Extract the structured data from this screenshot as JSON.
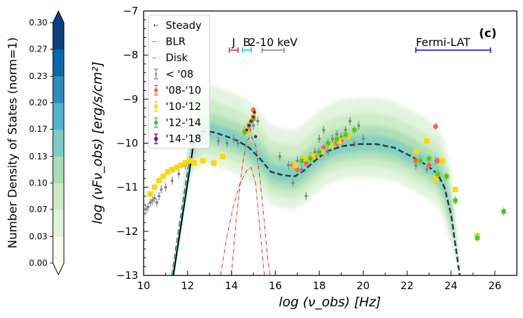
{
  "chart_data": {
    "type": "scatter",
    "panel_label": "(c)",
    "xlabel": "log (ν_obs)  [Hz]",
    "ylabel": "log (νFν_obs)  [erg/s/cm²]",
    "xlim": [
      10,
      27
    ],
    "ylim": [
      -13,
      -7
    ],
    "x_ticks": [
      10,
      12,
      14,
      16,
      18,
      20,
      22,
      24,
      26
    ],
    "y_ticks": [
      -13,
      -12,
      -11,
      -10,
      -9,
      -8,
      -7
    ],
    "colorbar": {
      "label": "Number Density of States (norm=1)",
      "ticks": [
        "0.00",
        "0.03",
        "0.07",
        "0.10",
        "0.13",
        "0.17",
        "0.20",
        "0.23",
        "0.27",
        "0.30"
      ],
      "levels": [
        0,
        0.033,
        0.067,
        0.1,
        0.133,
        0.167,
        0.2,
        0.233,
        0.267,
        0.3
      ],
      "colors": [
        "#f7fcf0",
        "#e0f3db",
        "#ccebc5",
        "#a8ddb5",
        "#7bccc4",
        "#4eb3d3",
        "#2b8cbe",
        "#0868ac",
        "#084081"
      ],
      "extend_colors": {
        "under": "#ffffff",
        "over": "#084081"
      }
    },
    "bands": [
      {
        "label": "J",
        "range": [
          13.9,
          14.3
        ],
        "color": "#d62728"
      },
      {
        "label": "B",
        "range": [
          14.5,
          14.9
        ],
        "color": "#17becf"
      },
      {
        "label": "2-10 keV",
        "range": [
          15.4,
          16.4
        ],
        "color": "#7f7f7f"
      },
      {
        "label": "Fermi-LAT",
        "range": [
          22.4,
          25.8
        ],
        "color": "#0000cc"
      }
    ],
    "legend": [
      {
        "label": "Steady",
        "color": "#2f3f3a",
        "kind": "dashed-line"
      },
      {
        "label": "BLR",
        "color": "#d62728",
        "kind": "dashdot-line"
      },
      {
        "label": "Disk",
        "color": "#d62728",
        "kind": "dashdot-line"
      },
      {
        "label": "< '08",
        "color": "#808080",
        "kind": "errorbar"
      },
      {
        "label": "'08-'10",
        "color": "#ff6347",
        "kind": "errorbar"
      },
      {
        "label": "'10-'12",
        "color": "#ffd700",
        "kind": "errorbar"
      },
      {
        "label": "'12-'14",
        "color": "#32cd32",
        "kind": "errorbar"
      },
      {
        "label": "'14-'18",
        "color": "#800080",
        "kind": "errorbar"
      }
    ],
    "series": [
      {
        "name": "Steady",
        "x": [
          11.3,
          11.6,
          12.0,
          12.3,
          12.7,
          13.2,
          13.8,
          14.3,
          14.8,
          15.3,
          15.8,
          16.3,
          16.6,
          16.9,
          17.3,
          17.8,
          18.3,
          19.0,
          19.8,
          20.6,
          21.4,
          22.2,
          22.9,
          23.4,
          23.7,
          24.0,
          24.2,
          24.4
        ],
        "y": [
          -13.0,
          -12.0,
          -10.7,
          -9.9,
          -9.72,
          -9.75,
          -9.85,
          -9.95,
          -10.1,
          -10.35,
          -10.65,
          -10.72,
          -10.74,
          -10.75,
          -10.62,
          -10.4,
          -10.2,
          -10.07,
          -10.02,
          -10.02,
          -10.1,
          -10.3,
          -10.5,
          -10.7,
          -11.0,
          -11.6,
          -12.3,
          -13.0
        ]
      },
      {
        "name": "BLR",
        "x": [
          13.5,
          13.8,
          14.1,
          14.4,
          14.7,
          14.9,
          15.1,
          15.25,
          15.4,
          15.5
        ],
        "y": [
          -13.0,
          -12.1,
          -11.4,
          -10.9,
          -10.62,
          -10.55,
          -10.9,
          -11.7,
          -12.5,
          -13.0
        ]
      },
      {
        "name": "Disk",
        "x": [
          14.0,
          14.2,
          14.5,
          14.7,
          14.9,
          15.1,
          15.3,
          15.5,
          15.65,
          15.75
        ],
        "y": [
          -13.0,
          -11.8,
          -10.5,
          -9.95,
          -9.82,
          -10.05,
          -10.8,
          -11.8,
          -12.6,
          -13.0
        ]
      },
      {
        "name": "< '08",
        "x": [
          10.1,
          10.2,
          10.3,
          10.4,
          10.5,
          10.6,
          10.7,
          10.8,
          11.0,
          11.3,
          11.6,
          11.9,
          12.2,
          12.6,
          13.0,
          13.4,
          13.8,
          14.1,
          14.3,
          14.6,
          15.0,
          15.2,
          16.2,
          16.6,
          16.8,
          17.0,
          17.2,
          17.4,
          17.6,
          17.8,
          18.0,
          18.2,
          18.4,
          18.6,
          18.8,
          19.0,
          19.2,
          19.4,
          19.6,
          19.8,
          20.0,
          22.4,
          22.9,
          23.3
        ],
        "y": [
          -11.5,
          -11.45,
          -11.35,
          -11.3,
          -11.25,
          -11.35,
          -11.2,
          -11.05,
          -11.0,
          -10.85,
          -10.7,
          -10.5,
          -10.0,
          -9.9,
          -9.8,
          -9.95,
          -10.0,
          -9.9,
          -10.0,
          -9.7,
          -9.6,
          -9.5,
          -10.3,
          -10.5,
          -10.9,
          -10.4,
          -10.6,
          -11.2,
          -10.3,
          -10.2,
          -9.9,
          -9.7,
          -10.2,
          -9.9,
          -9.8,
          -9.85,
          -9.7,
          -9.5,
          -10.0,
          -9.6,
          -9.9,
          -10.5,
          -10.6,
          -10.4
        ]
      },
      {
        "name": "'08-'10",
        "x": [
          14.8,
          14.9,
          15.0,
          16.8,
          17.0,
          17.4,
          17.8,
          18.2,
          18.8,
          19.0,
          22.4,
          23.0,
          23.3,
          23.4
        ],
        "y": [
          -9.7,
          -9.5,
          -9.25,
          -10.5,
          -10.6,
          -10.45,
          -10.3,
          -10.1,
          -10.0,
          -9.95,
          -10.4,
          -10.5,
          -9.62,
          -10.4
        ]
      },
      {
        "name": "'10-'12",
        "x": [
          10.3,
          10.5,
          10.7,
          10.9,
          11.1,
          11.3,
          11.5,
          11.7,
          11.9,
          12.1,
          12.3,
          12.7,
          13.2,
          13.6,
          14.7,
          15.0,
          16.9,
          17.3,
          17.7,
          18.1,
          18.5,
          18.9,
          19.3,
          22.4,
          22.9,
          23.3,
          23.6,
          24.2,
          25.2
        ],
        "y": [
          -11.15,
          -11.0,
          -10.85,
          -10.75,
          -10.65,
          -10.6,
          -10.55,
          -10.5,
          -10.45,
          -10.4,
          -10.45,
          -10.4,
          -10.45,
          -10.3,
          -9.7,
          -9.4,
          -10.5,
          -10.35,
          -10.3,
          -10.2,
          -10.05,
          -9.95,
          -9.85,
          -10.2,
          -9.95,
          -10.8,
          -10.4,
          -11.05,
          -12.1
        ]
      },
      {
        "name": "'12-'14",
        "x": [
          14.6,
          14.8,
          15.0,
          17.2,
          17.6,
          18.0,
          18.4,
          18.8,
          19.2,
          19.6,
          22.6,
          23.0,
          23.4,
          23.8,
          24.2,
          25.2,
          26.4
        ],
        "y": [
          -9.75,
          -9.6,
          -9.45,
          -10.4,
          -10.35,
          -10.2,
          -10.0,
          -9.9,
          -9.8,
          -9.7,
          -10.4,
          -10.35,
          -10.7,
          -10.75,
          -11.3,
          -12.15,
          -11.55
        ]
      },
      {
        "name": "'14-'18",
        "x": [
          14.7,
          14.8,
          14.9,
          15.0,
          15.05,
          15.1
        ],
        "y": [
          -9.7,
          -9.6,
          -9.5,
          -9.4,
          -9.3,
          -9.85
        ]
      }
    ]
  }
}
